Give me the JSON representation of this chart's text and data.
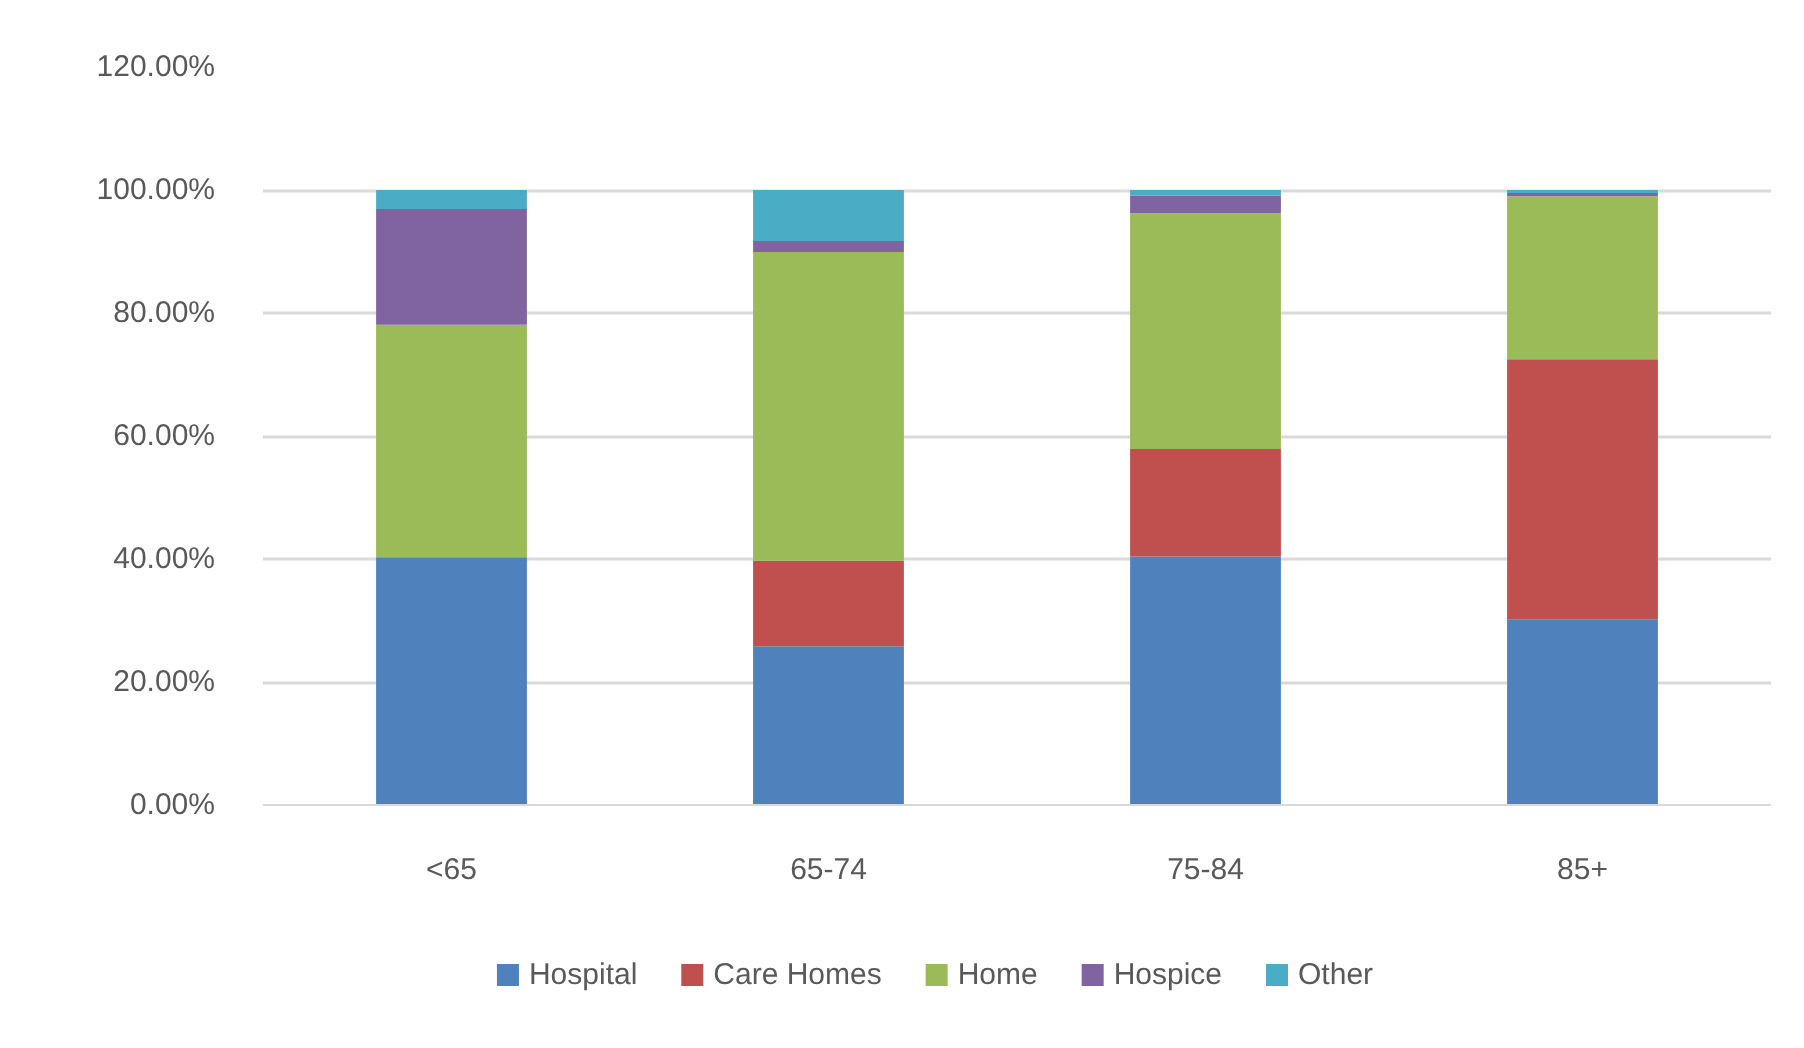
{
  "chart_data": {
    "type": "bar",
    "stacked": true,
    "categories": [
      "<65",
      "65-74",
      "75-84",
      "85+"
    ],
    "series": [
      {
        "name": "Hospital",
        "color": "#4f81bd",
        "values": [
          40.3,
          25.8,
          40.4,
          30.2
        ]
      },
      {
        "name": "Care Homes",
        "color": "#c0504d",
        "values": [
          0,
          13.9,
          17.5,
          42.3
        ]
      },
      {
        "name": "Home",
        "color": "#9bbb59",
        "values": [
          37.8,
          50.2,
          38.3,
          26.5
        ]
      },
      {
        "name": "Hospice",
        "color": "#8064a2",
        "values": [
          18.8,
          1.8,
          2.9,
          0.5
        ]
      },
      {
        "name": "Other",
        "color": "#4bacc6",
        "values": [
          3.1,
          8.3,
          0.9,
          0.5
        ]
      }
    ],
    "ylim": [
      0,
      120
    ],
    "yticks": [
      {
        "value": 0,
        "label": "0.00%"
      },
      {
        "value": 20,
        "label": "20.00%"
      },
      {
        "value": 40,
        "label": "40.00%"
      },
      {
        "value": 60,
        "label": "60.00%"
      },
      {
        "value": 80,
        "label": "80.00%"
      },
      {
        "value": 100,
        "label": "100.00%"
      },
      {
        "value": 120,
        "label": "120.00%"
      }
    ],
    "grid": "y",
    "legend": "bottom"
  }
}
